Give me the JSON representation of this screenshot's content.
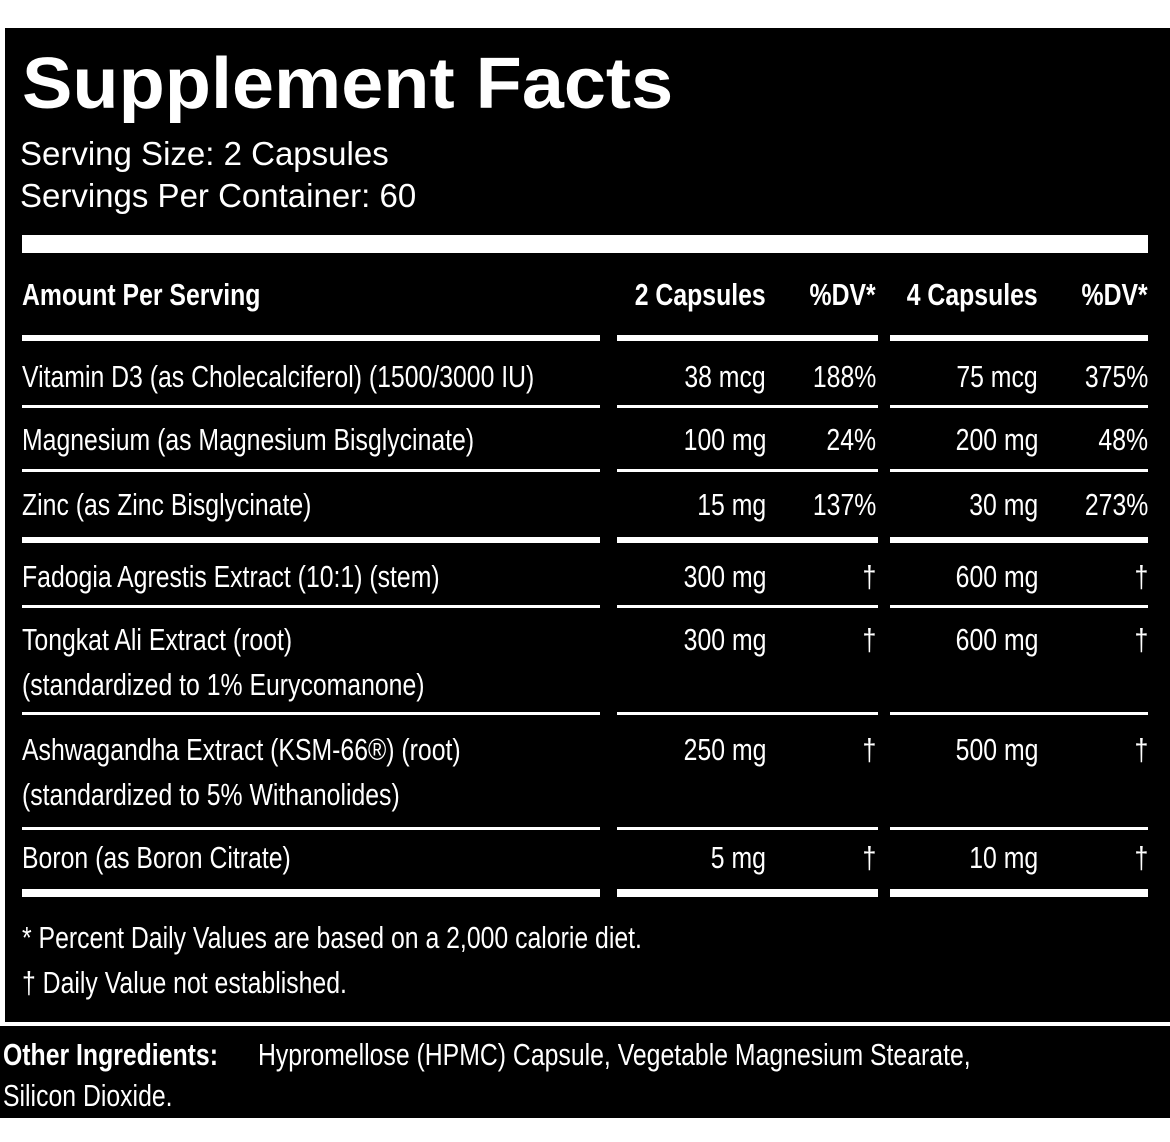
{
  "header": {
    "title": "Supplement Facts",
    "serving_size": "Serving Size: 2 Capsules",
    "servings_per_container": "Servings Per Container: 60"
  },
  "table": {
    "columns": [
      "Amount Per Serving",
      "2 Capsules",
      "%DV*",
      "4 Capsules",
      "%DV*"
    ],
    "rows": [
      {
        "name": [
          "Vitamin D3 (as Cholecalciferol) (1500/3000 IU)"
        ],
        "amount_2": "38 mcg",
        "dv_2": "188%",
        "amount_4": "75 mcg",
        "dv_4": "375%"
      },
      {
        "name": [
          "Magnesium (as Magnesium Bisglycinate)"
        ],
        "amount_2": "100 mg",
        "dv_2": "24%",
        "amount_4": "200 mg",
        "dv_4": "48%"
      },
      {
        "name": [
          "Zinc (as Zinc Bisglycinate)"
        ],
        "amount_2": "15 mg",
        "dv_2": "137%",
        "amount_4": "30 mg",
        "dv_4": "273%"
      },
      {
        "name": [
          "Fadogia Agrestis Extract (10:1) (stem)"
        ],
        "amount_2": "300 mg",
        "dv_2": "†",
        "amount_4": "600 mg",
        "dv_4": "†"
      },
      {
        "name": [
          "Tongkat Ali Extract (root)",
          "(standardized to 1% Eurycomanone)"
        ],
        "amount_2": "300 mg",
        "dv_2": "†",
        "amount_4": "600 mg",
        "dv_4": "†"
      },
      {
        "name": [
          "Ashwagandha Extract (KSM-66®) (root)",
          "(standardized to 5% Withanolides)"
        ],
        "amount_2": "250 mg",
        "dv_2": "†",
        "amount_4": "500 mg",
        "dv_4": "†"
      },
      {
        "name": [
          "Boron (as Boron Citrate)"
        ],
        "amount_2": "5 mg",
        "dv_2": "†",
        "amount_4": "10 mg",
        "dv_4": "†"
      }
    ]
  },
  "footnotes": [
    "* Percent Daily Values are based on a 2,000 calorie diet.",
    "† Daily Value not established."
  ],
  "other_ingredients": {
    "label": "Other Ingredients:",
    "text": "Hypromellose (HPMC) Capsule, Vegetable Magnesium Stearate,",
    "text_2": "Silicon Dioxide."
  }
}
